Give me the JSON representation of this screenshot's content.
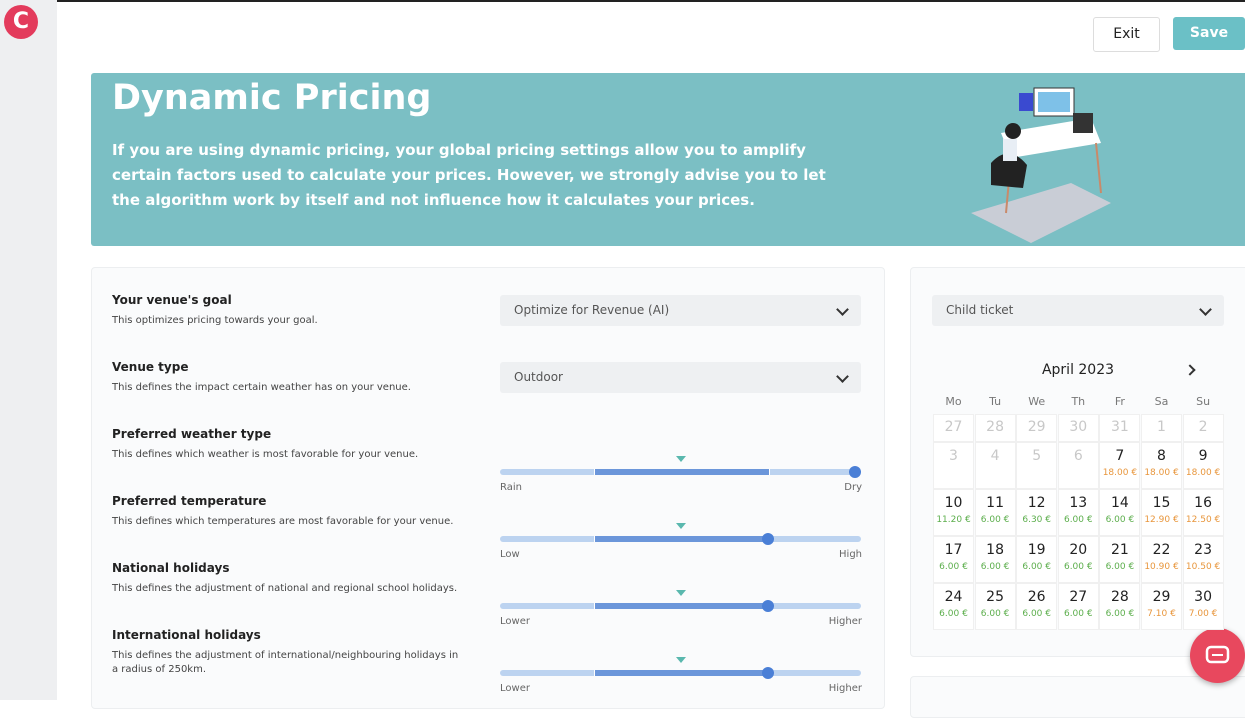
{
  "header": {
    "logo": "C",
    "exit": "Exit",
    "save": "Save"
  },
  "banner": {
    "title": "Dynamic Pricing",
    "text": "If you are using dynamic pricing, your global pricing settings allow you to amplify certain factors used to calculate your prices. However, we strongly advise you to let the algorithm work by itself and not influence how it calculates your prices."
  },
  "settings": [
    {
      "label": "Your venue's goal",
      "description": "This optimizes pricing towards your goal.",
      "select": "Optimize for Revenue (AI)"
    },
    {
      "label": "Venue type",
      "description": "This defines the impact certain weather has on your venue.",
      "select": "Outdoor"
    },
    {
      "label": "Preferred weather type",
      "description": "This defines which weather is most favorable for your venue.",
      "min": "Rain",
      "max": "Dry"
    },
    {
      "label": "Preferred temperature",
      "description": "This defines which temperatures are most favorable for your venue.",
      "min": "Low",
      "max": "High"
    },
    {
      "label": "National holidays",
      "description": "This defines the adjustment of national and regional school holidays.",
      "min": "Lower",
      "max": "Higher"
    },
    {
      "label": "International holidays",
      "description": "This defines the adjustment of international/neighbouring holidays in a radius of 250km.",
      "min": "Lower",
      "max": "Higher"
    }
  ],
  "calendar": {
    "ticket": "Child ticket",
    "month": "April 2023",
    "weekdays": [
      "Mo",
      "Tu",
      "We",
      "Th",
      "Fr",
      "Sa",
      "Su"
    ],
    "prev_month_days": [
      "27",
      "28",
      "29",
      "30",
      "31"
    ],
    "days": [
      {
        "day": "1"
      },
      {
        "day": "2"
      },
      {
        "day": "3"
      },
      {
        "day": "4"
      },
      {
        "day": "5"
      },
      {
        "day": "6"
      },
      {
        "day": "7",
        "price": "18.00 €",
        "price_color": "#e8963c"
      },
      {
        "day": "8",
        "price": "18.00 €",
        "price_color": "#e8963c"
      },
      {
        "day": "9",
        "price": "18.00 €",
        "price_color": "#e8963c"
      },
      {
        "day": "10",
        "price": "11.20 €",
        "price_color": "#5cae4c"
      },
      {
        "day": "11",
        "price": "6.00 €",
        "price_color": "#5cae4c"
      },
      {
        "day": "12",
        "price": "6.30 €",
        "price_color": "#5cae4c"
      },
      {
        "day": "13",
        "price": "6.00 €",
        "price_color": "#5cae4c"
      },
      {
        "day": "14",
        "price": "6.00 €",
        "price_color": "#5cae4c"
      },
      {
        "day": "15",
        "price": "12.90 €",
        "price_color": "#e8963c"
      },
      {
        "day": "16",
        "price": "12.50 €",
        "price_color": "#e8963c"
      },
      {
        "day": "17",
        "price": "6.00 €",
        "price_color": "#5cae4c"
      },
      {
        "day": "18",
        "price": "6.00 €",
        "price_color": "#5cae4c"
      },
      {
        "day": "19",
        "price": "6.00 €",
        "price_color": "#5cae4c"
      },
      {
        "day": "20",
        "price": "6.00 €",
        "price_color": "#5cae4c"
      },
      {
        "day": "21",
        "price": "6.00 €",
        "price_color": "#5cae4c"
      },
      {
        "day": "22",
        "price": "10.90 €",
        "price_color": "#e8963c"
      },
      {
        "day": "23",
        "price": "10.50 €",
        "price_color": "#e8963c"
      },
      {
        "day": "24",
        "price": "6.00 €",
        "price_color": "#5cae4c"
      },
      {
        "day": "25",
        "price": "6.00 €",
        "price_color": "#5cae4c"
      },
      {
        "day": "26",
        "price": "6.00 €",
        "price_color": "#5cae4c"
      },
      {
        "day": "27",
        "price": "6.00 €",
        "price_color": "#5cae4c"
      },
      {
        "day": "28",
        "price": "6.00 €",
        "price_color": "#5cae4c"
      },
      {
        "day": "29",
        "price": "7.10 €",
        "price_color": "#e8963c"
      },
      {
        "day": "30",
        "price": "7.00 €",
        "price_color": "#e8963c"
      }
    ]
  }
}
